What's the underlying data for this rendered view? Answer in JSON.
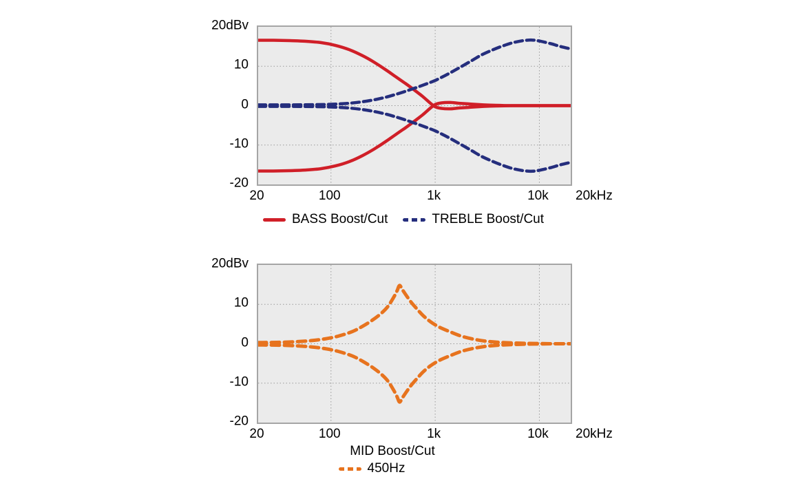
{
  "figure": {
    "background": "#ffffff",
    "plot_background": "#ebebeb",
    "frame_color": "#a5a5a5",
    "grid_color": "#999999",
    "text_color": "#000000"
  },
  "chart_data": [
    {
      "type": "line",
      "title": "",
      "x_scale": "log",
      "xlim": [
        20,
        20000
      ],
      "ylim": [
        -20,
        20
      ],
      "grid": "dotted",
      "legend_position": "bottom",
      "x_gridlines": [
        100,
        1000,
        10000
      ],
      "y_gridlines": [
        10,
        0,
        -10
      ],
      "x_ticks": [
        {
          "label": "20",
          "f": 20
        },
        {
          "label": "100",
          "f": 100
        },
        {
          "label": "1k",
          "f": 1000
        },
        {
          "label": "10k",
          "f": 10000
        },
        {
          "label": "20kHz",
          "f": 20000,
          "align": "left"
        }
      ],
      "y_ticks": [
        {
          "label": "20dBv",
          "v": 20
        },
        {
          "label": "10",
          "v": 10
        },
        {
          "label": "0",
          "v": 0
        },
        {
          "label": "-10",
          "v": -10
        },
        {
          "label": "-20",
          "v": -20
        }
      ],
      "legend": [
        {
          "label": "BASS Boost/Cut",
          "color": "#d01f28",
          "dash": false
        },
        {
          "label": "TREBLE Boost/Cut",
          "color": "#252e7d",
          "dash": true
        }
      ],
      "series": [
        {
          "name": "BASS boost",
          "color": "#d01f28",
          "dash": "",
          "width": 4.5,
          "points": [
            [
              20,
              16.6
            ],
            [
              28,
              16.6
            ],
            [
              40,
              16.5
            ],
            [
              56,
              16.35
            ],
            [
              80,
              16.0
            ],
            [
              110,
              15.3
            ],
            [
              150,
              14.2
            ],
            [
              200,
              12.7
            ],
            [
              260,
              11.0
            ],
            [
              340,
              9.0
            ],
            [
              420,
              7.3
            ],
            [
              520,
              5.6
            ],
            [
              600,
              4.4
            ],
            [
              680,
              3.3
            ],
            [
              760,
              2.3
            ],
            [
              840,
              1.3
            ],
            [
              920,
              0.4
            ],
            [
              1000,
              -0.3
            ],
            [
              1150,
              -0.7
            ],
            [
              1400,
              -0.8
            ],
            [
              1700,
              -0.6
            ],
            [
              2200,
              -0.4
            ],
            [
              2900,
              -0.2
            ],
            [
              3800,
              -0.08
            ],
            [
              5500,
              0
            ],
            [
              9000,
              0
            ],
            [
              14000,
              0
            ],
            [
              20000,
              0
            ]
          ]
        },
        {
          "name": "BASS cut",
          "color": "#d01f28",
          "dash": "",
          "width": 4.5,
          "points": [
            [
              20,
              -16.6
            ],
            [
              28,
              -16.6
            ],
            [
              40,
              -16.5
            ],
            [
              56,
              -16.35
            ],
            [
              80,
              -16.0
            ],
            [
              110,
              -15.3
            ],
            [
              150,
              -14.2
            ],
            [
              200,
              -12.7
            ],
            [
              260,
              -11.0
            ],
            [
              340,
              -9.0
            ],
            [
              420,
              -7.3
            ],
            [
              520,
              -5.6
            ],
            [
              600,
              -4.4
            ],
            [
              680,
              -3.3
            ],
            [
              760,
              -2.3
            ],
            [
              840,
              -1.3
            ],
            [
              920,
              -0.4
            ],
            [
              1000,
              0.3
            ],
            [
              1150,
              0.7
            ],
            [
              1400,
              0.8
            ],
            [
              1700,
              0.6
            ],
            [
              2200,
              0.4
            ],
            [
              2900,
              0.2
            ],
            [
              3800,
              0.08
            ],
            [
              5500,
              0
            ],
            [
              9000,
              0
            ],
            [
              14000,
              0
            ],
            [
              20000,
              0
            ]
          ]
        },
        {
          "name": "TREBLE boost",
          "color": "#252e7d",
          "dash": "11 6",
          "width": 4.5,
          "points": [
            [
              20,
              0.2
            ],
            [
              40,
              0.2
            ],
            [
              70,
              0.25
            ],
            [
              100,
              0.35
            ],
            [
              140,
              0.55
            ],
            [
              190,
              0.9
            ],
            [
              250,
              1.4
            ],
            [
              320,
              2.0
            ],
            [
              400,
              2.7
            ],
            [
              500,
              3.5
            ],
            [
              630,
              4.4
            ],
            [
              800,
              5.4
            ],
            [
              1000,
              6.4
            ],
            [
              1300,
              7.9
            ],
            [
              1700,
              9.6
            ],
            [
              2200,
              11.3
            ],
            [
              2800,
              12.9
            ],
            [
              3600,
              14.2
            ],
            [
              4500,
              15.2
            ],
            [
              5600,
              16.0
            ],
            [
              7000,
              16.5
            ],
            [
              8500,
              16.65
            ],
            [
              10000,
              16.4
            ],
            [
              13000,
              15.7
            ],
            [
              16000,
              15.0
            ],
            [
              20000,
              14.4
            ]
          ]
        },
        {
          "name": "TREBLE cut",
          "color": "#252e7d",
          "dash": "11 6",
          "width": 4.5,
          "points": [
            [
              20,
              -0.2
            ],
            [
              40,
              -0.2
            ],
            [
              70,
              -0.25
            ],
            [
              100,
              -0.35
            ],
            [
              140,
              -0.55
            ],
            [
              190,
              -0.9
            ],
            [
              250,
              -1.4
            ],
            [
              320,
              -2.0
            ],
            [
              400,
              -2.7
            ],
            [
              500,
              -3.5
            ],
            [
              630,
              -4.4
            ],
            [
              800,
              -5.4
            ],
            [
              1000,
              -6.4
            ],
            [
              1300,
              -7.9
            ],
            [
              1700,
              -9.6
            ],
            [
              2200,
              -11.3
            ],
            [
              2800,
              -12.9
            ],
            [
              3600,
              -14.2
            ],
            [
              4500,
              -15.2
            ],
            [
              5600,
              -16.0
            ],
            [
              7000,
              -16.5
            ],
            [
              8500,
              -16.65
            ],
            [
              10000,
              -16.4
            ],
            [
              13000,
              -15.7
            ],
            [
              16000,
              -15.0
            ],
            [
              20000,
              -14.4
            ]
          ]
        }
      ]
    },
    {
      "type": "line",
      "title": "MID Boost/Cut",
      "x_scale": "log",
      "xlim": [
        20,
        20000
      ],
      "ylim": [
        -20,
        20
      ],
      "grid": "dotted",
      "legend_position": "bottom",
      "x_gridlines": [
        100,
        1000,
        10000
      ],
      "y_gridlines": [
        10,
        0,
        -10
      ],
      "x_ticks": [
        {
          "label": "20",
          "f": 20
        },
        {
          "label": "100",
          "f": 100
        },
        {
          "label": "1k",
          "f": 1000
        },
        {
          "label": "10k",
          "f": 10000
        },
        {
          "label": "20kHz",
          "f": 20000,
          "align": "left"
        }
      ],
      "y_ticks": [
        {
          "label": "20dBv",
          "v": 20
        },
        {
          "label": "10",
          "v": 10
        },
        {
          "label": "0",
          "v": 0
        },
        {
          "label": "-10",
          "v": -10
        },
        {
          "label": "-20",
          "v": -20
        }
      ],
      "legend": [
        {
          "label": "450Hz",
          "color": "#e7731e",
          "dash": true
        }
      ],
      "series": [
        {
          "name": "MID boost 450Hz",
          "color": "#e7731e",
          "dash": "12 7",
          "width": 5,
          "points": [
            [
              20,
              0.3
            ],
            [
              30,
              0.35
            ],
            [
              45,
              0.5
            ],
            [
              65,
              0.8
            ],
            [
              90,
              1.3
            ],
            [
              120,
              2.0
            ],
            [
              160,
              3.1
            ],
            [
              200,
              4.4
            ],
            [
              250,
              6.0
            ],
            [
              300,
              7.6
            ],
            [
              350,
              9.4
            ],
            [
              400,
              11.8
            ],
            [
              430,
              13.4
            ],
            [
              455,
              14.8
            ],
            [
              485,
              13.7
            ],
            [
              530,
              12.2
            ],
            [
              590,
              10.5
            ],
            [
              670,
              8.8
            ],
            [
              770,
              7.1
            ],
            [
              900,
              5.6
            ],
            [
              1100,
              4.2
            ],
            [
              1400,
              3.0
            ],
            [
              1800,
              1.9
            ],
            [
              2400,
              1.1
            ],
            [
              3200,
              0.6
            ],
            [
              4500,
              0.3
            ],
            [
              6500,
              0.15
            ],
            [
              9000,
              0.07
            ],
            [
              13000,
              0.0
            ],
            [
              20000,
              0.0
            ]
          ]
        },
        {
          "name": "MID cut 450Hz",
          "color": "#e7731e",
          "dash": "12 7",
          "width": 5,
          "points": [
            [
              20,
              -0.3
            ],
            [
              30,
              -0.35
            ],
            [
              45,
              -0.5
            ],
            [
              65,
              -0.8
            ],
            [
              90,
              -1.3
            ],
            [
              120,
              -2.0
            ],
            [
              160,
              -3.1
            ],
            [
              200,
              -4.4
            ],
            [
              250,
              -6.0
            ],
            [
              300,
              -7.6
            ],
            [
              350,
              -9.4
            ],
            [
              400,
              -11.8
            ],
            [
              430,
              -13.4
            ],
            [
              455,
              -14.8
            ],
            [
              485,
              -13.7
            ],
            [
              530,
              -12.2
            ],
            [
              590,
              -10.5
            ],
            [
              670,
              -8.8
            ],
            [
              770,
              -7.1
            ],
            [
              900,
              -5.6
            ],
            [
              1100,
              -4.2
            ],
            [
              1400,
              -3.0
            ],
            [
              1800,
              -1.9
            ],
            [
              2400,
              -1.1
            ],
            [
              3200,
              -0.6
            ],
            [
              4500,
              -0.3
            ],
            [
              6500,
              -0.15
            ],
            [
              9000,
              -0.07
            ],
            [
              13000,
              0.0
            ],
            [
              20000,
              0.0
            ]
          ]
        }
      ]
    }
  ]
}
